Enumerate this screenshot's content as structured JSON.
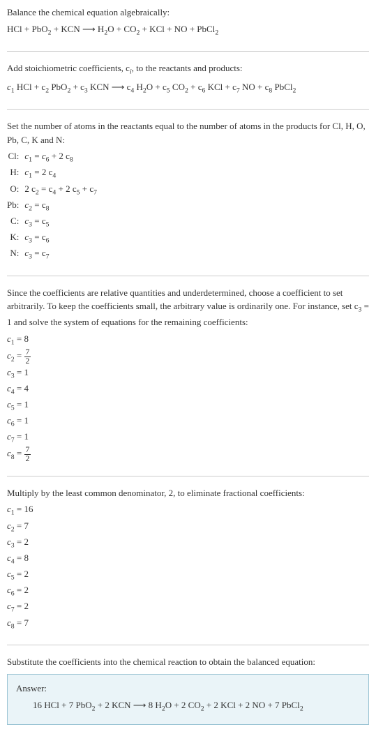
{
  "intro": {
    "title": "Balance the chemical equation algebraically:",
    "equation_lhs": "HCl + PbO",
    "equation_mid1": " + KCN  ⟶  H",
    "equation_mid2": "O + CO",
    "equation_mid3": " + KCl + NO + PbCl"
  },
  "stoich": {
    "title": "Add stoichiometric coefficients, c",
    "title_suffix": ", to the reactants and products:",
    "eq_parts": {
      "p1": " HCl + c",
      "p2": " PbO",
      "p3": " + c",
      "p4": " KCN  ⟶  c",
      "p5": " H",
      "p6": "O + c",
      "p7": " CO",
      "p8": " + c",
      "p9": " KCl + c",
      "p10": " NO + c",
      "p11": " PbCl"
    }
  },
  "atoms": {
    "title": "Set the number of atoms in the reactants equal to the number of atoms in the products for Cl, H, O, Pb, C, K and N:",
    "rows": [
      {
        "label": "Cl:",
        "lhs_c": "1",
        "rhs_a_c": "6",
        "rhs_a_coef": "",
        "plus": " + 2 c",
        "rhs_b_c": "8"
      },
      {
        "label": "H:",
        "lhs_c": "1",
        "rhs_a_coef": "2 c",
        "rhs_a_c": "4",
        "plus": "",
        "rhs_b_c": ""
      },
      {
        "label": "O:",
        "lhs_pre": "2 c",
        "lhs_c": "2",
        "rhs_a_coef": "c",
        "rhs_a_c": "4",
        "plus": " + 2 c",
        "rhs_b_c": "5",
        "plus2": " + c",
        "rhs_c_c": "7"
      },
      {
        "label": "Pb:",
        "lhs_c": "2",
        "rhs_a_coef": "c",
        "rhs_a_c": "8",
        "plus": "",
        "rhs_b_c": ""
      },
      {
        "label": "C:",
        "lhs_c": "3",
        "rhs_a_coef": "c",
        "rhs_a_c": "5",
        "plus": "",
        "rhs_b_c": ""
      },
      {
        "label": "K:",
        "lhs_c": "3",
        "rhs_a_coef": "c",
        "rhs_a_c": "6",
        "plus": "",
        "rhs_b_c": ""
      },
      {
        "label": "N:",
        "lhs_c": "3",
        "rhs_a_coef": "c",
        "rhs_a_c": "7",
        "plus": "",
        "rhs_b_c": ""
      }
    ]
  },
  "underdet": {
    "text": "Since the coefficients are relative quantities and underdetermined, choose a coefficient to set arbitrarily. To keep the coefficients small, the arbitrary value is ordinarily one. For instance, set c",
    "text_mid": " = 1 and solve the system of equations for the remaining coefficients:",
    "coefs": [
      {
        "sub": "1",
        "val": "8"
      },
      {
        "sub": "2",
        "frac_num": "7",
        "frac_den": "2"
      },
      {
        "sub": "3",
        "val": "1"
      },
      {
        "sub": "4",
        "val": "4"
      },
      {
        "sub": "5",
        "val": "1"
      },
      {
        "sub": "6",
        "val": "1"
      },
      {
        "sub": "7",
        "val": "1"
      },
      {
        "sub": "8",
        "frac_num": "7",
        "frac_den": "2"
      }
    ]
  },
  "lcd": {
    "text": "Multiply by the least common denominator, 2, to eliminate fractional coefficients:",
    "coefs": [
      {
        "sub": "1",
        "val": "16"
      },
      {
        "sub": "2",
        "val": "7"
      },
      {
        "sub": "3",
        "val": "2"
      },
      {
        "sub": "4",
        "val": "8"
      },
      {
        "sub": "5",
        "val": "2"
      },
      {
        "sub": "6",
        "val": "2"
      },
      {
        "sub": "7",
        "val": "2"
      },
      {
        "sub": "8",
        "val": "7"
      }
    ]
  },
  "final": {
    "text": "Substitute the coefficients into the chemical reaction to obtain the balanced equation:",
    "answer_label": "Answer:",
    "answer_parts": {
      "p1": "16 HCl + 7 PbO",
      "p2": " + 2 KCN  ⟶  8 H",
      "p3": "O + 2 CO",
      "p4": " + 2 KCl + 2 NO + 7 PbCl"
    }
  }
}
